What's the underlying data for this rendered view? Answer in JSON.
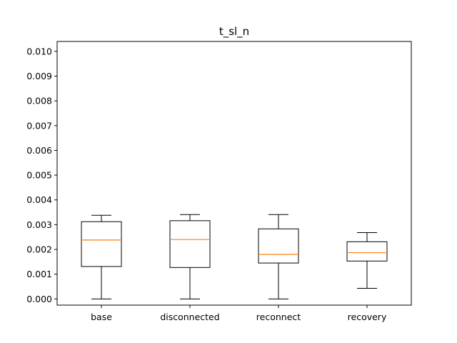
{
  "chart_data": {
    "type": "box",
    "title": "t_sl_n",
    "xlabel": "",
    "ylabel": "",
    "categories": [
      "base",
      "disconnected",
      "reconnect",
      "recovery"
    ],
    "boxes": [
      {
        "category": "base",
        "whisker_low": 0.0,
        "q1": 0.00131,
        "median": 0.00238,
        "q3": 0.00312,
        "whisker_high": 0.00338
      },
      {
        "category": "disconnected",
        "whisker_low": 0.0,
        "q1": 0.00127,
        "median": 0.0024,
        "q3": 0.00316,
        "whisker_high": 0.00341
      },
      {
        "category": "reconnect",
        "whisker_low": 0.0,
        "q1": 0.00145,
        "median": 0.0018,
        "q3": 0.00283,
        "whisker_high": 0.00341
      },
      {
        "category": "recovery",
        "whisker_low": 0.00043,
        "q1": 0.00153,
        "median": 0.00187,
        "q3": 0.00231,
        "whisker_high": 0.00268
      }
    ],
    "y_ticks": [
      "0.000",
      "0.001",
      "0.002",
      "0.003",
      "0.004",
      "0.005",
      "0.006",
      "0.007",
      "0.008",
      "0.009",
      "0.010"
    ],
    "ylim": [
      -0.00025,
      0.0104
    ],
    "grid": false,
    "colors": {
      "box": "#000000",
      "median": "#ff7f0e",
      "axes": "#000000"
    }
  }
}
